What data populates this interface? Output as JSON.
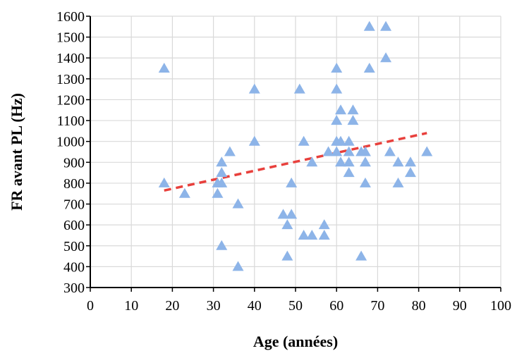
{
  "chart_data": {
    "type": "scatter",
    "title": "",
    "xlabel": "Age (années)",
    "ylabel": "FR avant PL (Hz)",
    "xlim": [
      0,
      100
    ],
    "ylim": [
      300,
      1600
    ],
    "xticks": [
      0,
      10,
      20,
      30,
      40,
      50,
      60,
      70,
      80,
      90,
      100
    ],
    "yticks": [
      300,
      400,
      500,
      600,
      700,
      800,
      900,
      1000,
      1100,
      1200,
      1300,
      1400,
      1500,
      1600
    ],
    "grid": true,
    "legend": "none",
    "series": [
      {
        "marker": "triangle",
        "color": "#8DB4E8",
        "points": [
          [
            18,
            1350
          ],
          [
            18,
            800
          ],
          [
            23,
            750
          ],
          [
            31,
            750
          ],
          [
            31,
            800
          ],
          [
            32,
            800
          ],
          [
            32,
            850
          ],
          [
            32,
            900
          ],
          [
            32,
            500
          ],
          [
            34,
            950
          ],
          [
            36,
            700
          ],
          [
            36,
            400
          ],
          [
            40,
            1250
          ],
          [
            40,
            1000
          ],
          [
            47,
            650
          ],
          [
            48,
            600
          ],
          [
            48,
            450
          ],
          [
            49,
            650
          ],
          [
            49,
            800
          ],
          [
            51,
            1250
          ],
          [
            52,
            1000
          ],
          [
            52,
            550
          ],
          [
            54,
            900
          ],
          [
            54,
            550
          ],
          [
            57,
            600
          ],
          [
            57,
            550
          ],
          [
            58,
            950
          ],
          [
            60,
            1350
          ],
          [
            60,
            1250
          ],
          [
            60,
            1100
          ],
          [
            60,
            1000
          ],
          [
            60,
            950
          ],
          [
            61,
            1150
          ],
          [
            61,
            1000
          ],
          [
            61,
            900
          ],
          [
            63,
            1000
          ],
          [
            63,
            950
          ],
          [
            63,
            900
          ],
          [
            63,
            850
          ],
          [
            64,
            1150
          ],
          [
            64,
            1100
          ],
          [
            66,
            950
          ],
          [
            66,
            450
          ],
          [
            67,
            950
          ],
          [
            67,
            900
          ],
          [
            67,
            800
          ],
          [
            68,
            1550
          ],
          [
            68,
            1350
          ],
          [
            72,
            1550
          ],
          [
            72,
            1400
          ],
          [
            73,
            950
          ],
          [
            75,
            900
          ],
          [
            75,
            800
          ],
          [
            78,
            900
          ],
          [
            78,
            850
          ],
          [
            82,
            950
          ]
        ]
      }
    ],
    "trendline": {
      "style": "dashed",
      "color": "#E8403C",
      "x": [
        18,
        82
      ],
      "y": [
        765,
        1040
      ]
    }
  }
}
